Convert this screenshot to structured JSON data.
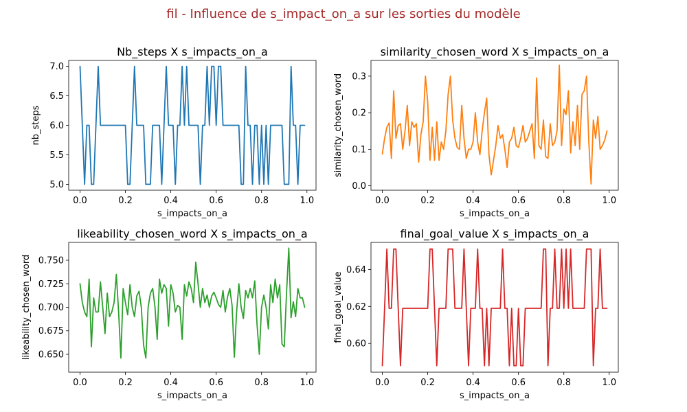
{
  "suptitle": "fil - Influence de s_impact_on_a sur les sorties du modèle",
  "colors": {
    "suptitle": "#a52a2a"
  },
  "chart_data": [
    {
      "type": "line",
      "title": "Nb_steps X s_impacts_on_a",
      "xlabel": "s_impacts_on_a",
      "ylabel": "nb_steps",
      "xlim": [
        -0.05,
        1.04
      ],
      "ylim": [
        4.9,
        7.1
      ],
      "xticks": [
        0.0,
        0.2,
        0.4,
        0.6,
        0.8,
        1.0
      ],
      "xtick_labels": [
        "0.0",
        "0.2",
        "0.4",
        "0.6",
        "0.8",
        "1.0"
      ],
      "yticks": [
        5.0,
        5.5,
        6.0,
        6.5,
        7.0
      ],
      "ytick_labels": [
        "5.0",
        "5.5",
        "6.0",
        "6.5",
        "7.0"
      ],
      "color": "#1f77b4",
      "x": [
        0.0,
        0.01,
        0.02,
        0.03,
        0.04,
        0.05,
        0.06,
        0.07,
        0.08,
        0.09,
        0.1,
        0.11,
        0.12,
        0.13,
        0.14,
        0.15,
        0.16,
        0.17,
        0.18,
        0.19,
        0.2,
        0.21,
        0.22,
        0.23,
        0.24,
        0.25,
        0.26,
        0.27,
        0.28,
        0.29,
        0.3,
        0.31,
        0.32,
        0.33,
        0.34,
        0.35,
        0.36,
        0.37,
        0.38,
        0.39,
        0.4,
        0.41,
        0.42,
        0.43,
        0.44,
        0.45,
        0.46,
        0.47,
        0.48,
        0.49,
        0.5,
        0.51,
        0.52,
        0.53,
        0.54,
        0.55,
        0.56,
        0.57,
        0.58,
        0.59,
        0.6,
        0.61,
        0.62,
        0.63,
        0.64,
        0.65,
        0.66,
        0.67,
        0.68,
        0.69,
        0.7,
        0.71,
        0.72,
        0.73,
        0.74,
        0.75,
        0.76,
        0.77,
        0.78,
        0.79,
        0.8,
        0.81,
        0.82,
        0.83,
        0.84,
        0.85,
        0.86,
        0.87,
        0.88,
        0.89,
        0.9,
        0.91,
        0.92,
        0.93,
        0.94,
        0.95,
        0.96,
        0.97,
        0.98,
        0.99
      ],
      "values": [
        7,
        6,
        5,
        6,
        6,
        5,
        5,
        6,
        7,
        6,
        6,
        6,
        6,
        6,
        6,
        6,
        6,
        6,
        6,
        6,
        6,
        5,
        5,
        6,
        7,
        6,
        6,
        6,
        6,
        5,
        5,
        5,
        6,
        6,
        6,
        6,
        5,
        6,
        7,
        6,
        6,
        6,
        5,
        6,
        6,
        7,
        6,
        7,
        6,
        6,
        6,
        6,
        6,
        5,
        6,
        6,
        7,
        6,
        7,
        7,
        6,
        7,
        7,
        6,
        6,
        6,
        6,
        6,
        6,
        6,
        6,
        5,
        5,
        7,
        6,
        6,
        5,
        6,
        6,
        5,
        6,
        5,
        6,
        5,
        6,
        6,
        6,
        6,
        6,
        6,
        5,
        5,
        5,
        7,
        6,
        6,
        5,
        6,
        6,
        6
      ]
    },
    {
      "type": "line",
      "title": "similarity_chosen_word X s_impacts_on_a",
      "xlabel": "s_impacts_on_a",
      "ylabel": "similarity_chosen_word",
      "xlim": [
        -0.05,
        1.04
      ],
      "ylim": [
        -0.012,
        0.343
      ],
      "xticks": [
        0.0,
        0.2,
        0.4,
        0.6,
        0.8,
        1.0
      ],
      "xtick_labels": [
        "0.0",
        "0.2",
        "0.4",
        "0.6",
        "0.8",
        "1.0"
      ],
      "yticks": [
        0.0,
        0.1,
        0.2,
        0.3
      ],
      "ytick_labels": [
        "0.0",
        "0.1",
        "0.2",
        "0.3"
      ],
      "color": "#ff7f0e",
      "x": [
        0.0,
        0.01,
        0.02,
        0.03,
        0.04,
        0.05,
        0.06,
        0.07,
        0.08,
        0.09,
        0.1,
        0.11,
        0.12,
        0.13,
        0.14,
        0.15,
        0.16,
        0.17,
        0.18,
        0.19,
        0.2,
        0.21,
        0.22,
        0.23,
        0.24,
        0.25,
        0.26,
        0.27,
        0.28,
        0.29,
        0.3,
        0.31,
        0.32,
        0.33,
        0.34,
        0.35,
        0.36,
        0.37,
        0.38,
        0.39,
        0.4,
        0.41,
        0.42,
        0.43,
        0.44,
        0.45,
        0.46,
        0.47,
        0.48,
        0.49,
        0.5,
        0.51,
        0.52,
        0.53,
        0.54,
        0.55,
        0.56,
        0.57,
        0.58,
        0.59,
        0.6,
        0.61,
        0.62,
        0.63,
        0.64,
        0.65,
        0.66,
        0.67,
        0.68,
        0.69,
        0.7,
        0.71,
        0.72,
        0.73,
        0.74,
        0.75,
        0.76,
        0.77,
        0.78,
        0.79,
        0.8,
        0.81,
        0.82,
        0.83,
        0.84,
        0.85,
        0.86,
        0.87,
        0.88,
        0.89,
        0.9,
        0.91,
        0.92,
        0.93,
        0.94,
        0.95,
        0.96,
        0.97,
        0.98,
        0.99
      ],
      "values": [
        0.087,
        0.13,
        0.16,
        0.172,
        0.075,
        0.26,
        0.13,
        0.165,
        0.17,
        0.1,
        0.15,
        0.22,
        0.11,
        0.175,
        0.16,
        0.17,
        0.065,
        0.14,
        0.175,
        0.3,
        0.23,
        0.07,
        0.16,
        0.07,
        0.175,
        0.07,
        0.12,
        0.1,
        0.15,
        0.25,
        0.3,
        0.18,
        0.13,
        0.105,
        0.1,
        0.22,
        0.13,
        0.075,
        0.1,
        0.1,
        0.12,
        0.2,
        0.12,
        0.085,
        0.15,
        0.2,
        0.24,
        0.085,
        0.03,
        0.07,
        0.11,
        0.165,
        0.13,
        0.14,
        0.1,
        0.05,
        0.12,
        0.13,
        0.16,
        0.11,
        0.105,
        0.13,
        0.165,
        0.12,
        0.13,
        0.15,
        0.17,
        0.075,
        0.295,
        0.11,
        0.1,
        0.18,
        0.08,
        0.075,
        0.17,
        0.11,
        0.12,
        0.15,
        0.33,
        0.11,
        0.21,
        0.195,
        0.26,
        0.09,
        0.175,
        0.11,
        0.22,
        0.1,
        0.25,
        0.26,
        0.3,
        0.12,
        0.005,
        0.18,
        0.13,
        0.19,
        0.1,
        0.11,
        0.125,
        0.15
      ]
    },
    {
      "type": "line",
      "title": "likeability_chosen_word X s_impacts_on_a",
      "xlabel": "s_impacts_on_a",
      "ylabel": "likeability_chosen_word",
      "xlim": [
        -0.05,
        1.04
      ],
      "ylim": [
        0.631,
        0.769
      ],
      "xticks": [
        0.0,
        0.2,
        0.4,
        0.6,
        0.8,
        1.0
      ],
      "xtick_labels": [
        "0.0",
        "0.2",
        "0.4",
        "0.6",
        "0.8",
        "1.0"
      ],
      "yticks": [
        0.65,
        0.675,
        0.7,
        0.725,
        0.75
      ],
      "ytick_labels": [
        "0.650",
        "0.675",
        "0.700",
        "0.725",
        "0.750"
      ],
      "color": "#2ca02c",
      "x": [
        0.0,
        0.01,
        0.02,
        0.03,
        0.04,
        0.05,
        0.06,
        0.07,
        0.08,
        0.09,
        0.1,
        0.11,
        0.12,
        0.13,
        0.14,
        0.15,
        0.16,
        0.17,
        0.18,
        0.19,
        0.2,
        0.21,
        0.22,
        0.23,
        0.24,
        0.25,
        0.26,
        0.27,
        0.28,
        0.29,
        0.3,
        0.31,
        0.32,
        0.33,
        0.34,
        0.35,
        0.36,
        0.37,
        0.38,
        0.39,
        0.4,
        0.41,
        0.42,
        0.43,
        0.44,
        0.45,
        0.46,
        0.47,
        0.48,
        0.49,
        0.5,
        0.51,
        0.52,
        0.53,
        0.54,
        0.55,
        0.56,
        0.57,
        0.58,
        0.59,
        0.6,
        0.61,
        0.62,
        0.63,
        0.64,
        0.65,
        0.66,
        0.67,
        0.68,
        0.69,
        0.7,
        0.71,
        0.72,
        0.73,
        0.74,
        0.75,
        0.76,
        0.77,
        0.78,
        0.79,
        0.8,
        0.81,
        0.82,
        0.83,
        0.84,
        0.85,
        0.86,
        0.87,
        0.88,
        0.89,
        0.9,
        0.91,
        0.92,
        0.93,
        0.94,
        0.95,
        0.96,
        0.97,
        0.98,
        0.99
      ],
      "values": [
        0.725,
        0.705,
        0.695,
        0.69,
        0.73,
        0.658,
        0.71,
        0.695,
        0.695,
        0.727,
        0.7,
        0.672,
        0.715,
        0.69,
        0.695,
        0.705,
        0.735,
        0.695,
        0.646,
        0.72,
        0.705,
        0.692,
        0.724,
        0.7,
        0.69,
        0.712,
        0.717,
        0.7,
        0.66,
        0.646,
        0.7,
        0.715,
        0.72,
        0.701,
        0.666,
        0.73,
        0.715,
        0.724,
        0.72,
        0.68,
        0.724,
        0.715,
        0.695,
        0.702,
        0.7,
        0.666,
        0.724,
        0.712,
        0.727,
        0.72,
        0.705,
        0.748,
        0.725,
        0.7,
        0.72,
        0.705,
        0.713,
        0.7,
        0.712,
        0.716,
        0.71,
        0.703,
        0.7,
        0.718,
        0.695,
        0.711,
        0.72,
        0.702,
        0.647,
        0.695,
        0.725,
        0.7,
        0.688,
        0.718,
        0.71,
        0.72,
        0.71,
        0.728,
        0.682,
        0.65,
        0.7,
        0.713,
        0.7,
        0.677,
        0.724,
        0.705,
        0.73,
        0.71,
        0.724,
        0.661,
        0.658,
        0.715,
        0.763,
        0.689,
        0.706,
        0.69,
        0.72,
        0.71,
        0.71,
        0.7
      ]
    },
    {
      "type": "line",
      "title": "final_goal_value X s_impacts_on_a",
      "xlabel": "s_impacts_on_a",
      "ylabel": "final_goal_value",
      "xlim": [
        -0.05,
        1.04
      ],
      "ylim": [
        0.5845,
        0.6546
      ],
      "xticks": [
        0.0,
        0.2,
        0.4,
        0.6,
        0.8,
        1.0
      ],
      "xtick_labels": [
        "0.0",
        "0.2",
        "0.4",
        "0.6",
        "0.8",
        "1.0"
      ],
      "yticks": [
        0.6,
        0.62,
        0.64
      ],
      "ytick_labels": [
        "0.60",
        "0.62",
        "0.64"
      ],
      "color": "#d62728",
      "x": [
        0.0,
        0.01,
        0.02,
        0.03,
        0.04,
        0.05,
        0.06,
        0.07,
        0.08,
        0.09,
        0.1,
        0.11,
        0.12,
        0.13,
        0.14,
        0.15,
        0.16,
        0.17,
        0.18,
        0.19,
        0.2,
        0.21,
        0.22,
        0.23,
        0.24,
        0.25,
        0.26,
        0.27,
        0.28,
        0.29,
        0.3,
        0.31,
        0.32,
        0.33,
        0.34,
        0.35,
        0.36,
        0.37,
        0.38,
        0.39,
        0.4,
        0.41,
        0.42,
        0.43,
        0.44,
        0.45,
        0.46,
        0.47,
        0.48,
        0.49,
        0.5,
        0.51,
        0.52,
        0.53,
        0.54,
        0.55,
        0.56,
        0.57,
        0.58,
        0.59,
        0.6,
        0.61,
        0.62,
        0.63,
        0.64,
        0.65,
        0.66,
        0.67,
        0.68,
        0.69,
        0.7,
        0.71,
        0.72,
        0.73,
        0.74,
        0.75,
        0.76,
        0.77,
        0.78,
        0.79,
        0.8,
        0.81,
        0.82,
        0.83,
        0.84,
        0.85,
        0.86,
        0.87,
        0.88,
        0.89,
        0.9,
        0.91,
        0.92,
        0.93,
        0.94,
        0.95,
        0.96,
        0.97,
        0.98,
        0.99
      ],
      "values": [
        0.588,
        0.619,
        0.651,
        0.619,
        0.619,
        0.651,
        0.651,
        0.619,
        0.588,
        0.619,
        0.619,
        0.619,
        0.619,
        0.619,
        0.619,
        0.619,
        0.619,
        0.619,
        0.619,
        0.619,
        0.619,
        0.651,
        0.651,
        0.619,
        0.588,
        0.619,
        0.619,
        0.619,
        0.619,
        0.651,
        0.651,
        0.651,
        0.619,
        0.619,
        0.619,
        0.619,
        0.651,
        0.619,
        0.588,
        0.619,
        0.619,
        0.619,
        0.651,
        0.619,
        0.619,
        0.588,
        0.619,
        0.588,
        0.619,
        0.619,
        0.619,
        0.619,
        0.619,
        0.651,
        0.619,
        0.619,
        0.588,
        0.619,
        0.588,
        0.588,
        0.619,
        0.588,
        0.588,
        0.619,
        0.619,
        0.619,
        0.619,
        0.619,
        0.619,
        0.619,
        0.619,
        0.651,
        0.651,
        0.588,
        0.619,
        0.619,
        0.651,
        0.619,
        0.619,
        0.651,
        0.619,
        0.651,
        0.619,
        0.651,
        0.619,
        0.619,
        0.619,
        0.619,
        0.619,
        0.619,
        0.651,
        0.651,
        0.651,
        0.588,
        0.619,
        0.619,
        0.651,
        0.619,
        0.619,
        0.619
      ]
    }
  ]
}
